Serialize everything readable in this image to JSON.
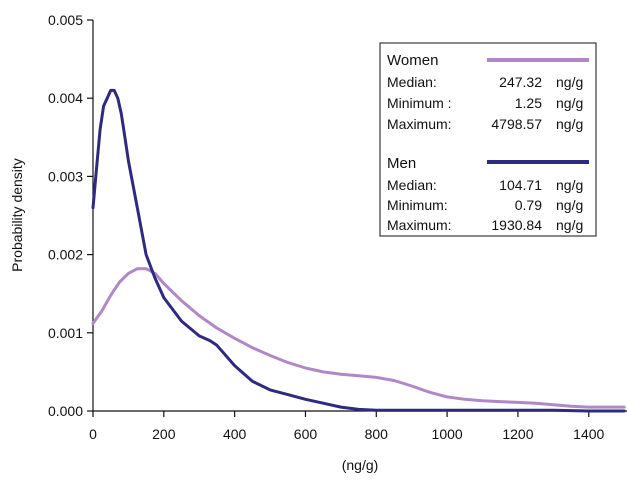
{
  "chart_data": {
    "type": "line",
    "title": "",
    "xlabel": "(ng/g)",
    "ylabel": "Probability density",
    "xlim": [
      0,
      1500
    ],
    "ylim": [
      0,
      0.005
    ],
    "x_ticks": [
      "0",
      "200",
      "400",
      "600",
      "800",
      "1000",
      "1200",
      "1400"
    ],
    "y_ticks": [
      "0.000",
      "0.001",
      "0.002",
      "0.003",
      "0.004",
      "0.005"
    ],
    "grid": false,
    "legend_position": "top-right",
    "series": [
      {
        "name": "Women",
        "color": "#b088c8",
        "x": [
          0,
          25,
          50,
          75,
          100,
          125,
          150,
          175,
          200,
          250,
          300,
          350,
          400,
          450,
          500,
          550,
          600,
          650,
          700,
          750,
          800,
          850,
          900,
          950,
          1000,
          1050,
          1100,
          1150,
          1200,
          1250,
          1300,
          1350,
          1400,
          1450,
          1500
        ],
        "values": [
          0.00112,
          0.00128,
          0.00148,
          0.00165,
          0.00176,
          0.00182,
          0.00182,
          0.00176,
          0.00163,
          0.00141,
          0.00122,
          0.00106,
          0.00093,
          0.00081,
          0.00071,
          0.00062,
          0.00055,
          0.0005,
          0.00047,
          0.00045,
          0.00043,
          0.00039,
          0.00032,
          0.00024,
          0.00018,
          0.00015,
          0.00013,
          0.00012,
          0.00011,
          0.0001,
          8e-05,
          6e-05,
          5e-05,
          5e-05,
          5e-05
        ]
      },
      {
        "name": "Men",
        "color": "#2e2a80",
        "x": [
          0,
          10,
          20,
          30,
          40,
          50,
          60,
          70,
          80,
          90,
          100,
          125,
          150,
          175,
          200,
          250,
          300,
          330,
          350,
          400,
          450,
          500,
          550,
          600,
          650,
          700,
          750,
          800,
          900,
          1000,
          1100,
          1200,
          1300,
          1400,
          1500
        ],
        "values": [
          0.0026,
          0.0031,
          0.0036,
          0.0039,
          0.004,
          0.0041,
          0.0041,
          0.004,
          0.0038,
          0.0035,
          0.0032,
          0.0026,
          0.002,
          0.0017,
          0.00145,
          0.00115,
          0.00096,
          0.0009,
          0.00084,
          0.00058,
          0.00038,
          0.00027,
          0.00021,
          0.00015,
          0.0001,
          5e-05,
          2e-05,
          1e-05,
          1e-05,
          1e-05,
          1e-05,
          1e-05,
          1e-05,
          0.0,
          0.0
        ]
      }
    ],
    "legend": {
      "women": {
        "name": "Women",
        "rows": [
          {
            "label": "Median:",
            "value": "247.32",
            "unit": "ng/g"
          },
          {
            "label": "Minimum :",
            "value": "1.25",
            "unit": "ng/g"
          },
          {
            "label": "Maximum:",
            "value": "4798.57",
            "unit": "ng/g"
          }
        ]
      },
      "men": {
        "name": "Men",
        "rows": [
          {
            "label": "Median:",
            "value": "104.71",
            "unit": "ng/g"
          },
          {
            "label": "Minimum:",
            "value": "0.79",
            "unit": "ng/g"
          },
          {
            "label": "Maximum:",
            "value": "1930.84",
            "unit": "ng/g"
          }
        ]
      }
    }
  }
}
